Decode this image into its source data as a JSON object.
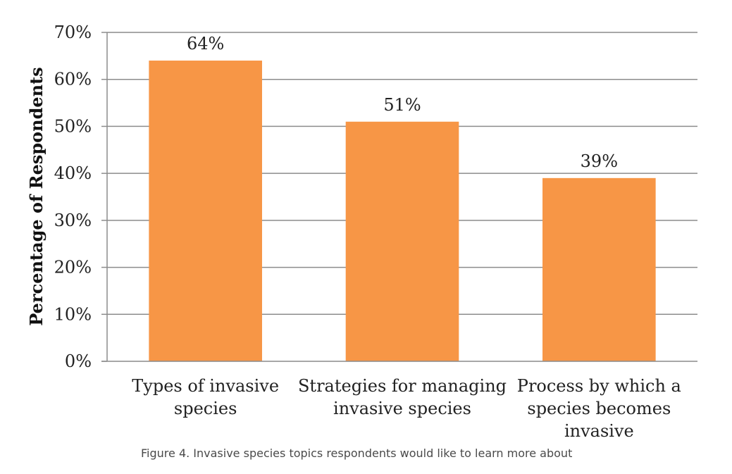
{
  "caption": "Figure 4.  Invasive species topics respondents would like to learn more about",
  "chart_data": {
    "type": "bar",
    "categories": [
      [
        "Types of invasive",
        "species"
      ],
      [
        "Strategies for managing",
        "invasive species"
      ],
      [
        "Process by which a",
        "species becomes",
        "invasive"
      ]
    ],
    "values": [
      64,
      51,
      39
    ],
    "data_labels": [
      "64%",
      "51%",
      "39%"
    ],
    "title": "",
    "xlabel": "",
    "ylabel": "Percentage of Respondents",
    "ylim": [
      0,
      70
    ],
    "yticks": [
      0,
      10,
      20,
      30,
      40,
      50,
      60,
      70
    ],
    "ytick_labels": [
      "0%",
      "10%",
      "20%",
      "30%",
      "40%",
      "50%",
      "60%",
      "70%"
    ],
    "grid": true,
    "legend": "none",
    "colors": {
      "bar": "#F79646",
      "grid": "#8C8C8C",
      "axis": "#8C8C8C"
    }
  }
}
